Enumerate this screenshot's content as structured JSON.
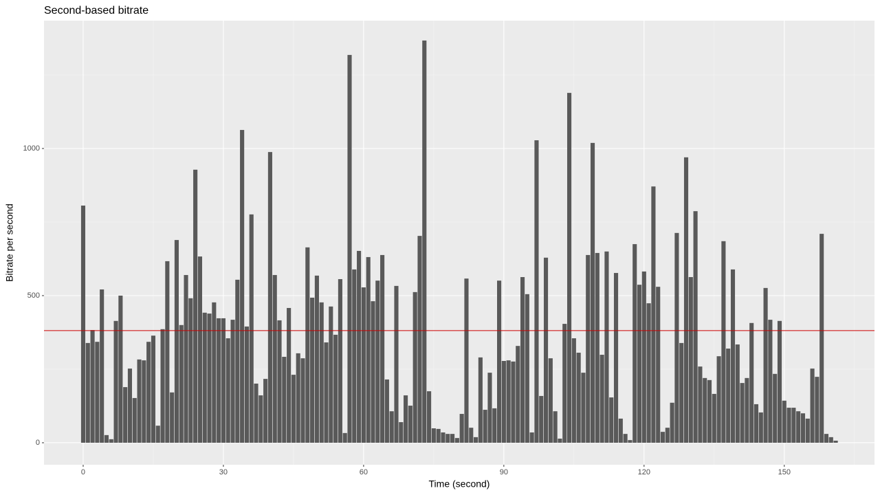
{
  "chart_data": {
    "type": "bar",
    "title": "Second-based bitrate",
    "xlabel": "Time (second)",
    "ylabel": "Bitrate per second",
    "x": [
      0,
      1,
      2,
      3,
      4,
      5,
      6,
      7,
      8,
      9,
      10,
      11,
      12,
      13,
      14,
      15,
      16,
      17,
      18,
      19,
      20,
      21,
      22,
      23,
      24,
      25,
      26,
      27,
      28,
      29,
      30,
      31,
      32,
      33,
      34,
      35,
      36,
      37,
      38,
      39,
      40,
      41,
      42,
      43,
      44,
      45,
      46,
      47,
      48,
      49,
      50,
      51,
      52,
      53,
      54,
      55,
      56,
      57,
      58,
      59,
      60,
      61,
      62,
      63,
      64,
      65,
      66,
      67,
      68,
      69,
      70,
      71,
      72,
      73,
      74,
      75,
      76,
      77,
      78,
      79,
      80,
      81,
      82,
      83,
      84,
      85,
      86,
      87,
      88,
      89,
      90,
      91,
      92,
      93,
      94,
      95,
      96,
      97,
      98,
      99,
      100,
      101,
      102,
      103,
      104,
      105,
      106,
      107,
      108,
      109,
      110,
      111,
      112,
      113,
      114,
      115,
      116,
      117,
      118,
      119,
      120,
      121,
      122,
      123,
      124,
      125,
      126,
      127,
      128,
      129,
      130,
      131,
      132,
      133,
      134,
      135,
      136,
      137,
      138,
      139,
      140,
      141,
      142,
      143,
      144,
      145,
      146,
      147,
      148,
      149,
      150,
      151,
      152,
      153,
      154,
      155,
      156,
      157,
      158,
      159,
      160,
      161
    ],
    "values": [
      806,
      339,
      383,
      343,
      521,
      26,
      12,
      414,
      500,
      189,
      252,
      152,
      283,
      280,
      343,
      364,
      58,
      386,
      617,
      171,
      689,
      400,
      570,
      491,
      928,
      633,
      442,
      439,
      477,
      423,
      423,
      355,
      418,
      554,
      1063,
      395,
      776,
      201,
      161,
      217,
      988,
      570,
      416,
      292,
      458,
      231,
      304,
      287,
      664,
      493,
      568,
      477,
      341,
      463,
      367,
      556,
      33,
      1318,
      589,
      652,
      528,
      631,
      481,
      551,
      638,
      215,
      107,
      533,
      70,
      161,
      126,
      512,
      703,
      1367,
      175,
      49,
      47,
      35,
      30,
      30,
      16,
      98,
      558,
      51,
      19,
      290,
      112,
      238,
      117,
      551,
      278,
      280,
      276,
      329,
      563,
      505,
      35,
      1028,
      159,
      629,
      287,
      107,
      14,
      404,
      1189,
      355,
      306,
      238,
      638,
      1019,
      645,
      299,
      650,
      154,
      577,
      82,
      30,
      9,
      675,
      537,
      582,
      474,
      871,
      530,
      37,
      51,
      136,
      713,
      339,
      970,
      563,
      787,
      259,
      220,
      213,
      166,
      294,
      685,
      320,
      589,
      334,
      203,
      220,
      407,
      131,
      103,
      526,
      418,
      234,
      414,
      143,
      119,
      119,
      107,
      100,
      82,
      252,
      224,
      710,
      30,
      19,
      7
    ],
    "color": "#595959",
    "hline": 381,
    "hline_color": "#cc0000",
    "xlim": [
      -8.38,
      169.3
    ],
    "ylim": [
      -74.8,
      1434.6
    ],
    "xticks": [
      0,
      30,
      60,
      90,
      120,
      150
    ],
    "yticks": [
      0,
      500,
      1000
    ],
    "grid": true
  }
}
